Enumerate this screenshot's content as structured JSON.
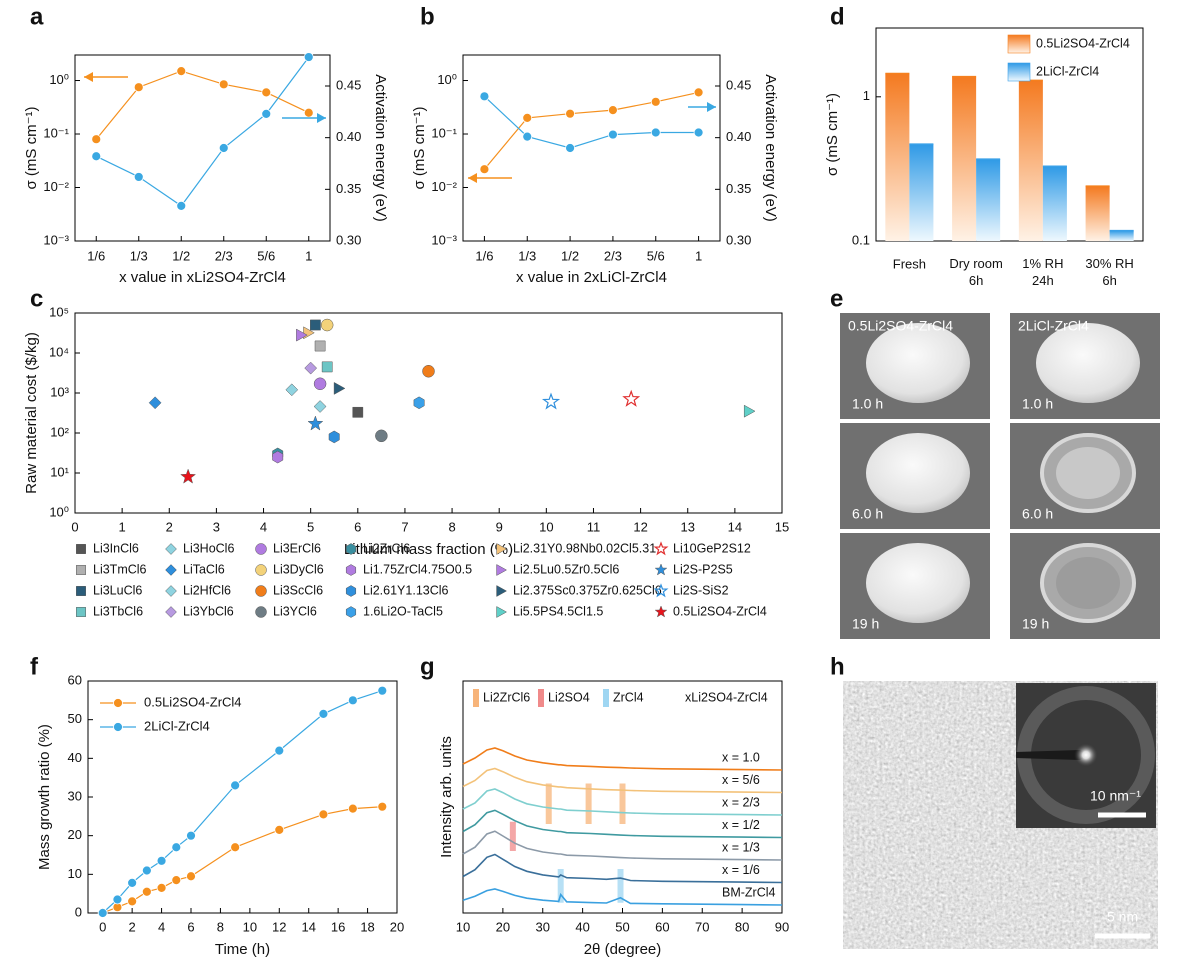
{
  "panels": [
    "a",
    "b",
    "c",
    "d",
    "e",
    "f",
    "g",
    "h"
  ],
  "chart_data": [
    {
      "type": "line",
      "categories": [
        "1/6",
        "1/3",
        "1/2",
        "2/3",
        "5/6",
        "1"
      ],
      "xlabel": "x value in xLi2SO4-ZrCl4",
      "ylabel": "σ (mS cm⁻¹)",
      "y2label": "Activation energy (eV)",
      "ylog": true,
      "ylim": [
        0.001,
        3
      ],
      "yticks": [
        {
          "value": 0.001,
          "label": "10⁻³"
        },
        {
          "value": 0.01,
          "label": "10⁻²"
        },
        {
          "value": 0.1,
          "label": "10⁻¹"
        },
        {
          "value": 1,
          "label": "10⁰"
        }
      ],
      "y2lim": [
        0.3,
        0.48
      ],
      "y2ticks": [
        {
          "value": 0.3,
          "label": "0.30"
        },
        0.35,
        {
          "value": 0.4,
          "label": "0.40"
        },
        0.45
      ],
      "series": [
        {
          "color": "#f5901e",
          "values": [
            0.08,
            0.75,
            1.5,
            0.85,
            0.6,
            0.25
          ]
        },
        {
          "color": "#3aa8e2",
          "axis": "y2",
          "values": [
            0.382,
            0.362,
            0.334,
            0.39,
            0.423,
            0.478
          ]
        }
      ]
    },
    {
      "type": "line",
      "categories": [
        "1/6",
        "1/3",
        "1/2",
        "2/3",
        "5/6",
        "1"
      ],
      "xlabel": "x value in 2xLiCl-ZrCl4",
      "ylabel": "σ (mS cm⁻¹)",
      "y2label": "Activation energy (eV)",
      "ylog": true,
      "ylim": [
        0.001,
        3
      ],
      "yticks": [
        {
          "value": 0.001,
          "label": "10⁻³"
        },
        {
          "value": 0.01,
          "label": "10⁻²"
        },
        {
          "value": 0.1,
          "label": "10⁻¹"
        },
        {
          "value": 1,
          "label": "10⁰"
        }
      ],
      "y2lim": [
        0.3,
        0.48
      ],
      "y2ticks": [
        {
          "value": 0.3,
          "label": "0.30"
        },
        0.35,
        {
          "value": 0.4,
          "label": "0.40"
        },
        0.45
      ],
      "series": [
        {
          "color": "#f5901e",
          "values": [
            0.022,
            0.2,
            0.24,
            0.28,
            0.4,
            0.6
          ]
        },
        {
          "color": "#3aa8e2",
          "axis": "y2",
          "values": [
            0.44,
            0.401,
            0.39,
            0.403,
            0.405,
            0.405
          ]
        }
      ]
    },
    {
      "type": "scatter",
      "xlabel": "Lithium mass fraction (%)",
      "ylabel": "Raw material cost ($/kg)",
      "xlim": [
        0,
        15
      ],
      "xticks": [
        0,
        1,
        2,
        3,
        4,
        5,
        6,
        7,
        8,
        9,
        10,
        11,
        12,
        13,
        14,
        15
      ],
      "ylog": true,
      "ylim": [
        1,
        100000
      ],
      "yticks": [
        {
          "value": 1,
          "label": "10⁰"
        },
        {
          "value": 10,
          "label": "10¹"
        },
        {
          "value": 100,
          "label": "10²"
        },
        {
          "value": 1000,
          "label": "10³"
        },
        {
          "value": 10000,
          "label": "10⁴"
        },
        {
          "value": 100000,
          "label": "10⁵"
        }
      ],
      "series": [
        {
          "name": "Li3InCl6",
          "color": "#555555",
          "marker": "square",
          "x": [
            6.0
          ],
          "values": [
            330
          ]
        },
        {
          "name": "Li3TmCl6",
          "color": "#b0b0b0",
          "marker": "square",
          "x": [
            5.2
          ],
          "values": [
            15000
          ]
        },
        {
          "name": "Li3LuCl6",
          "color": "#2b5d7a",
          "marker": "square",
          "x": [
            5.1
          ],
          "values": [
            50000
          ]
        },
        {
          "name": "Li3TbCl6",
          "color": "#6cc5c5",
          "marker": "square",
          "x": [
            5.35
          ],
          "values": [
            4500
          ]
        },
        {
          "name": "Li3HoCl6",
          "color": "#8fd3e0",
          "marker": "diamond",
          "x": [
            5.2
          ],
          "values": [
            460
          ]
        },
        {
          "name": "LiTaCl6",
          "color": "#2f8fdc",
          "marker": "diamond",
          "x": [
            1.7
          ],
          "values": [
            570
          ]
        },
        {
          "name": "Li2HfCl6",
          "color": "#8fd3e0",
          "marker": "diamond",
          "x": [
            4.6
          ],
          "values": [
            1200
          ]
        },
        {
          "name": "Li3YbCl6",
          "color": "#b79ae0",
          "marker": "diamond",
          "x": [
            5.0
          ],
          "values": [
            4200
          ]
        },
        {
          "name": "Li3ErCl6",
          "color": "#b07be0",
          "marker": "circle",
          "x": [
            5.2
          ],
          "values": [
            1700
          ]
        },
        {
          "name": "Li3DyCl6",
          "color": "#f3d27a",
          "marker": "circle",
          "x": [
            5.35
          ],
          "values": [
            50000
          ]
        },
        {
          "name": "Li3ScCl6",
          "color": "#f07d1a",
          "marker": "circle",
          "x": [
            7.5
          ],
          "values": [
            3500
          ]
        },
        {
          "name": "Li3YCl6",
          "color": "#6e7c84",
          "marker": "circle",
          "x": [
            6.5
          ],
          "values": [
            85
          ]
        },
        {
          "name": "Li2ZrCl6",
          "color": "#3a8fa0",
          "marker": "hexagon",
          "x": [
            4.3
          ],
          "values": [
            30
          ]
        },
        {
          "name": "Li1.75ZrCl4.75O0.5",
          "color": "#b07be0",
          "marker": "hexagon",
          "x": [
            4.3
          ],
          "values": [
            25
          ]
        },
        {
          "name": "Li2.61Y1.13Cl6",
          "color": "#2f8fdc",
          "marker": "hexagon",
          "x": [
            5.5
          ],
          "values": [
            80
          ]
        },
        {
          "name": "1.6Li2O-TaCl5",
          "color": "#3aa0e8",
          "marker": "hexagon",
          "x": [
            7.3
          ],
          "values": [
            570
          ]
        },
        {
          "name": "Li2.31Y0.98Nb0.02Cl5.31",
          "color": "#f3c27a",
          "marker": "triangle",
          "x": [
            4.95
          ],
          "values": [
            32000
          ]
        },
        {
          "name": "Li2.5Lu0.5Zr0.5Cl6",
          "color": "#b07be0",
          "marker": "triangle",
          "x": [
            4.8
          ],
          "values": [
            28000
          ]
        },
        {
          "name": "Li2.375Sc0.375Zr0.625Cl6",
          "color": "#2b5d7a",
          "marker": "triangle",
          "x": [
            5.6
          ],
          "values": [
            1300
          ]
        },
        {
          "name": "Li5.5PS4.5Cl1.5",
          "color": "#5fd0c8",
          "marker": "triangle",
          "x": [
            14.3
          ],
          "values": [
            350
          ]
        },
        {
          "name": "Li10GeP2S12",
          "color": "#e03030",
          "marker": "star",
          "hollow": true,
          "x": [
            11.8
          ],
          "values": [
            700
          ]
        },
        {
          "name": "Li2S-P2S5",
          "color": "#2f8fdc",
          "marker": "star",
          "x": [
            5.1
          ],
          "values": [
            170
          ]
        },
        {
          "name": "Li2S-SiS2",
          "color": "#2f8fdc",
          "marker": "star",
          "hollow": true,
          "x": [
            10.1
          ],
          "values": [
            600
          ]
        },
        {
          "name": "0.5Li2SO4-ZrCl4",
          "color": "#e8141c",
          "marker": "star",
          "x": [
            2.4
          ],
          "values": [
            8
          ]
        }
      ]
    },
    {
      "type": "bar",
      "categories": [
        "Fresh",
        "Dry room 6h",
        "1% RH 24h",
        "30% RH 6h"
      ],
      "ylabel": "σ (mS cm⁻¹)",
      "ylog": true,
      "ylim": [
        0.1,
        3
      ],
      "yticks": [
        0.1,
        1
      ],
      "legend": "upper right",
      "series": [
        {
          "name": "0.5Li2SO4-ZrCl4",
          "color": "#f5801e",
          "values": [
            1.45,
            1.38,
            1.3,
            0.24
          ]
        },
        {
          "name": "2LiCl-ZrCl4",
          "color": "#3aa0e8",
          "values": [
            0.47,
            0.37,
            0.33,
            0.118
          ]
        }
      ]
    },
    {
      "type": "line",
      "xlabel": "Time (h)",
      "ylabel": "Mass growth ratio (%)",
      "xlim": [
        -1,
        20
      ],
      "xticks": [
        0,
        2,
        4,
        6,
        8,
        10,
        12,
        14,
        16,
        18,
        20
      ],
      "ylim": [
        0,
        60
      ],
      "yticks": [
        0,
        10,
        20,
        30,
        40,
        50,
        60
      ],
      "legend": "upper left",
      "x": [
        0,
        1,
        2,
        3,
        4,
        5,
        6,
        9,
        12,
        15,
        17,
        19
      ],
      "series": [
        {
          "name": "0.5Li2SO4-ZrCl4",
          "color": "#f5901e",
          "values": [
            0,
            1.5,
            3,
            5.5,
            6.5,
            8.5,
            9.5,
            17,
            21.5,
            25.5,
            27,
            27.5
          ]
        },
        {
          "name": "2LiCl-ZrCl4",
          "color": "#3aa8e2",
          "values": [
            0,
            3.5,
            7.8,
            11,
            13.5,
            17,
            20,
            33,
            42,
            51.5,
            55,
            57.5
          ]
        }
      ]
    },
    {
      "type": "ridgeline",
      "xlabel": "2θ (degree)",
      "ylabel": "Intensity arb. units",
      "legend_title": "xLi2SO4-ZrCl4",
      "xlim": [
        10,
        90
      ],
      "xticks": [
        10,
        20,
        30,
        40,
        50,
        60,
        70,
        80,
        90
      ],
      "x": [
        10,
        13,
        16,
        18,
        20,
        23,
        26,
        30,
        34,
        34.5,
        36,
        42,
        46,
        49.5,
        52,
        60,
        70,
        80,
        90
      ],
      "references": [
        {
          "name": "Li2ZrCl6",
          "color": "#f7b47a",
          "x": [
            31.5,
            41.5,
            50
          ]
        },
        {
          "name": "Li2SO4",
          "color": "#f08a8a",
          "x": [
            22.5
          ]
        },
        {
          "name": "ZrCl4",
          "color": "#9fd6f2",
          "x": [
            34.5,
            49.5
          ]
        }
      ],
      "series": [
        {
          "name": "x = 1.0",
          "color": "#f07d1a",
          "values": [
            1.5,
            3,
            5,
            5.5,
            4.8,
            3.5,
            2.5,
            1.8,
            1.3,
            1.3,
            1.1,
            0.9,
            0.7,
            0.6,
            0.5,
            0.3,
            0.2,
            0.1,
            0
          ]
        },
        {
          "name": "x = 5/6",
          "color": "#f3c27a",
          "values": [
            1.5,
            3,
            5.5,
            6,
            5.2,
            3.8,
            2.7,
            1.9,
            1.4,
            1.4,
            1.2,
            0.9,
            0.7,
            0.6,
            0.5,
            0.3,
            0.2,
            0.1,
            0
          ]
        },
        {
          "name": "x = 2/3",
          "color": "#7fcfcf",
          "values": [
            1.5,
            3,
            6,
            6.5,
            5.6,
            4,
            2.8,
            2,
            1.5,
            1.5,
            1.2,
            1,
            0.8,
            0.6,
            0.5,
            0.3,
            0.2,
            0.1,
            0
          ]
        },
        {
          "name": "x = 1/2",
          "color": "#3f9aa0",
          "values": [
            1.5,
            3.2,
            6.2,
            6.8,
            5.8,
            4.2,
            2.9,
            2,
            1.5,
            1.5,
            1.2,
            1,
            0.8,
            0.6,
            0.5,
            0.3,
            0.2,
            0.1,
            0
          ]
        },
        {
          "name": "x = 1/3",
          "color": "#8c9aa8",
          "values": [
            1.5,
            3.2,
            6.5,
            7.2,
            6,
            4.2,
            2.9,
            2,
            1.5,
            1.5,
            1.2,
            1,
            0.8,
            0.6,
            0.5,
            0.3,
            0.2,
            0.1,
            0
          ]
        },
        {
          "name": "x = 1/6",
          "color": "#3a6f9a",
          "values": [
            1.5,
            3.2,
            6.3,
            7,
            5.8,
            4,
            2.8,
            1.9,
            1.4,
            1.9,
            1.2,
            1,
            0.8,
            1.1,
            0.5,
            0.3,
            0.2,
            0.1,
            0
          ]
        },
        {
          "name": "BM-ZrCl4",
          "color": "#3aa0e0",
          "values": [
            1.2,
            2.2,
            3.6,
            4,
            3.4,
            2.4,
            1.7,
            1.2,
            0.9,
            2.6,
            0.8,
            0.6,
            0.5,
            1.8,
            0.4,
            0.3,
            0.2,
            0.1,
            0
          ]
        }
      ]
    }
  ],
  "images": {
    "e": {
      "columns": [
        {
          "title": "0.5Li2SO4-ZrCl4",
          "times": [
            "1.0 h",
            "6.0 h",
            "19 h"
          ]
        },
        {
          "title": "2LiCl-ZrCl4",
          "times": [
            "1.0 h",
            "6.0 h",
            "19 h"
          ]
        }
      ]
    },
    "h": {
      "inset_scale": "10 nm⁻¹",
      "scale": "5 nm"
    }
  }
}
